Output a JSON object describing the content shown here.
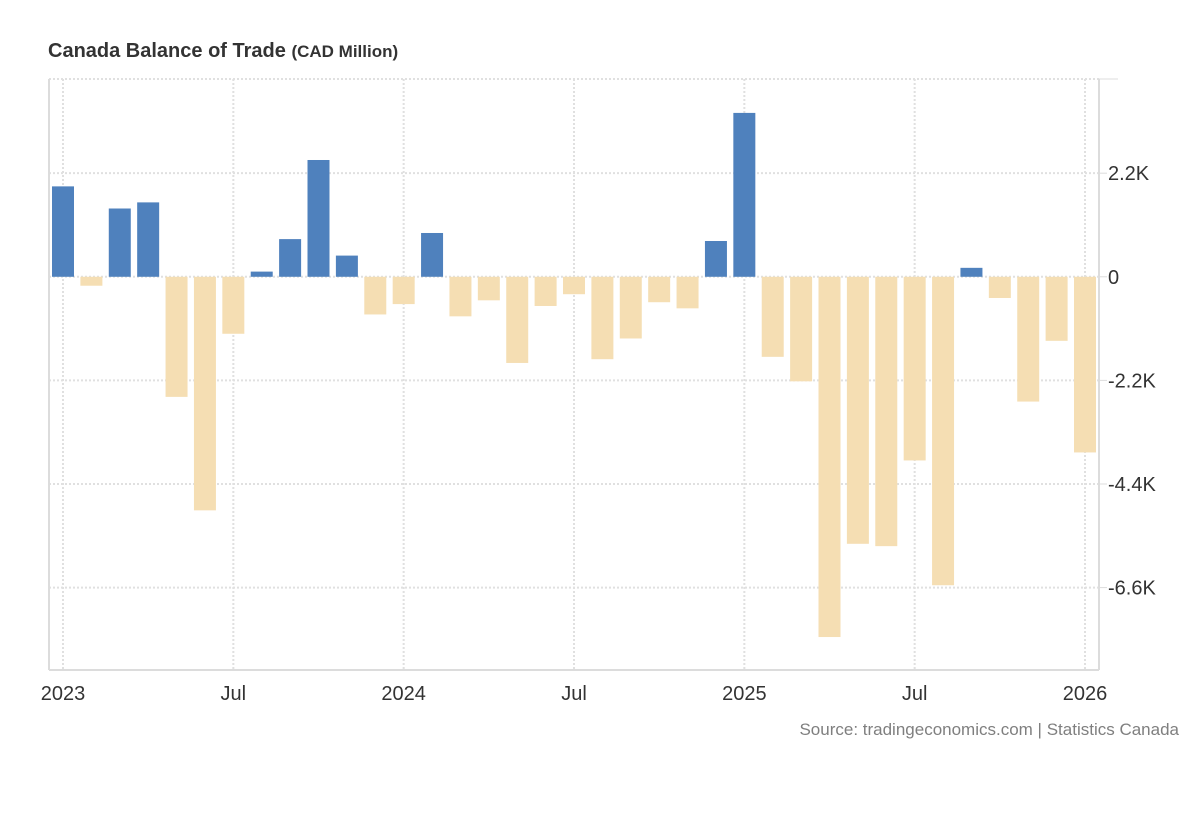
{
  "title": "Canada Balance of Trade",
  "unit": "(CAD Million)",
  "source": "Source: tradingeconomics.com | Statistics Canada",
  "colors": {
    "positive": "#4f81bd",
    "negative": "#f5deb3",
    "grid": "#e0e0e0",
    "axis": "#dcdcdc",
    "text": "#333333"
  },
  "chart_data": {
    "type": "bar",
    "title": "Canada Balance of Trade (CAD Million)",
    "xlabel": "",
    "ylabel": "CAD Million",
    "ylim": [
      -8350,
      4200
    ],
    "grid": true,
    "y_ticks": [
      2200,
      0,
      -2200,
      -4400,
      -6600
    ],
    "y_tick_labels": [
      "2.2K",
      "0",
      "-2.2K",
      "-4.4K",
      "-6.6K"
    ],
    "x_ticks": [
      {
        "index": 0,
        "label": "2023"
      },
      {
        "index": 6,
        "label": "Jul"
      },
      {
        "index": 12,
        "label": "2024"
      },
      {
        "index": 18,
        "label": "Jul"
      },
      {
        "index": 24,
        "label": "2025"
      },
      {
        "index": 30,
        "label": "Jul"
      },
      {
        "index": 36,
        "label": "2026"
      }
    ],
    "categories": [
      "Jan 2023",
      "Feb 2023",
      "Mar 2023",
      "Apr 2023",
      "May 2023",
      "Jun 2023",
      "Jul 2023",
      "Aug 2023",
      "Sep 2023",
      "Oct 2023",
      "Nov 2023",
      "Dec 2023",
      "Jan 2024",
      "Feb 2024",
      "Mar 2024",
      "Apr 2024",
      "May 2024",
      "Jun 2024",
      "Jul 2024",
      "Aug 2024",
      "Sep 2024",
      "Oct 2024",
      "Nov 2024",
      "Dec 2024",
      "Jan 2025",
      "Feb 2025",
      "Mar 2025",
      "Apr 2025",
      "May 2025",
      "Jun 2025",
      "Jul 2025",
      "Aug 2025",
      "Sep 2025",
      "Oct 2025",
      "Nov 2025",
      "Dec 2025",
      "Jan 2026"
    ],
    "values": [
      1920,
      -190,
      1450,
      1580,
      -2550,
      -4960,
      -1210,
      110,
      800,
      2480,
      450,
      -800,
      -580,
      930,
      -840,
      -500,
      -1830,
      -620,
      -370,
      -1750,
      -1310,
      -540,
      -670,
      760,
      3480,
      -1700,
      -2220,
      -7650,
      -5670,
      -5720,
      -3900,
      -6550,
      190,
      -450,
      -2650,
      -1360,
      -3730
    ],
    "legend": "none"
  }
}
